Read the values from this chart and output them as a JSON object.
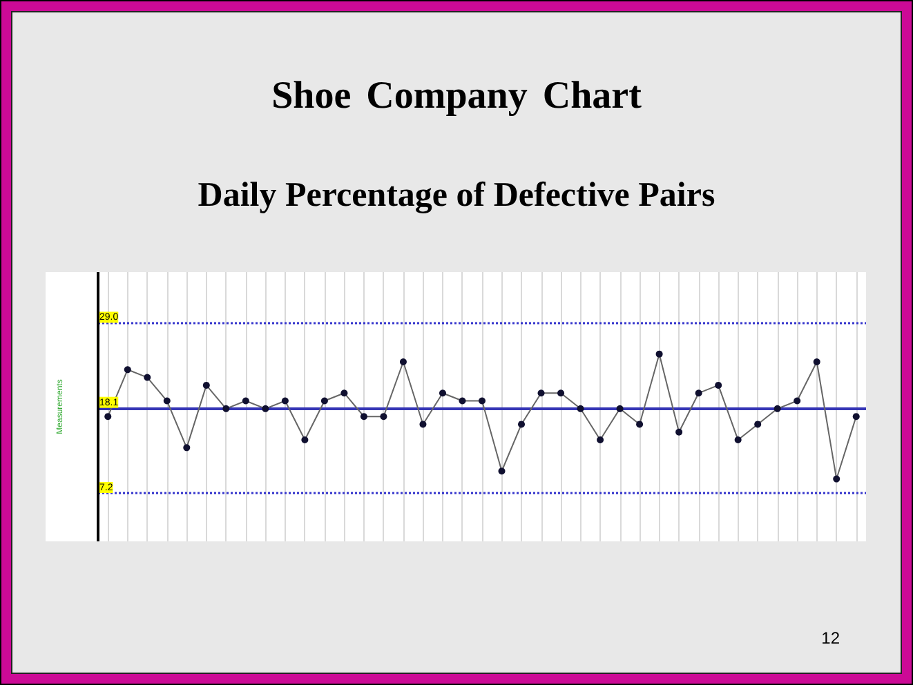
{
  "chart_data": {
    "type": "line",
    "title": "Shoe Company Chart",
    "subtitle": "Daily Percentage of Defective Pairs",
    "ylabel": "Measurements",
    "annotations": [
      "12"
    ],
    "categories": [
      null,
      null,
      null,
      null,
      null,
      null,
      null,
      null,
      null,
      null,
      null,
      null,
      null,
      null,
      null,
      null,
      null,
      null,
      null,
      null,
      null,
      null,
      null,
      null,
      null,
      null,
      null,
      null,
      null,
      null,
      null,
      null,
      null,
      null,
      null,
      null,
      null,
      null,
      null
    ],
    "series": [
      {
        "color": "#666666",
        "values": [
          17,
          23,
          22,
          19,
          13,
          21,
          18,
          19,
          18,
          19,
          14,
          19,
          20,
          17,
          17,
          24,
          16,
          20,
          19,
          19,
          10,
          16,
          20,
          20,
          18,
          14,
          18,
          16,
          25,
          15,
          20,
          21,
          14,
          16,
          18,
          19,
          24,
          9,
          17
        ]
      }
    ],
    "marker": "circle",
    "ylim": [
      1,
      35.5
    ],
    "yticks": [
      7.2,
      18.1,
      {
        "value": 29,
        "label": "29.0"
      }
    ],
    "grid": "x",
    "tick_labels": "y",
    "ref_lines": [
      {
        "axis": "y",
        "value": 29,
        "color": "#3333cc",
        "line_style": "dotted"
      },
      {
        "axis": "y",
        "value": 18.1,
        "color": "#3535b5",
        "line_style": "solid"
      },
      {
        "axis": "y",
        "value": 7.2,
        "color": "#3333cc",
        "line_style": "dotted"
      }
    ]
  }
}
